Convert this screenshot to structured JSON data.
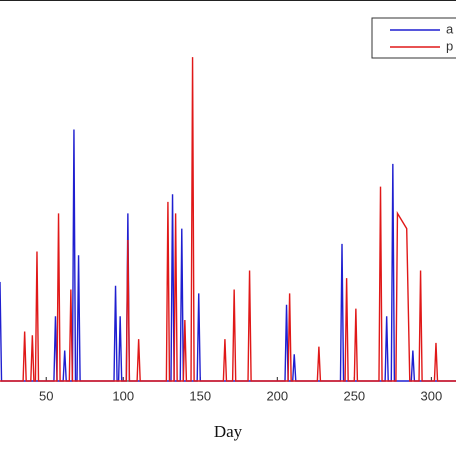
{
  "chart_data": {
    "type": "line",
    "xlabel": "Day",
    "x": [
      20,
      21,
      35,
      36,
      37,
      40,
      41,
      42,
      43,
      44,
      45,
      55,
      56,
      57,
      58,
      59,
      61,
      62,
      63,
      65,
      66,
      67,
      68,
      69,
      70,
      71,
      72,
      94,
      95,
      96,
      97,
      98,
      99,
      102,
      103,
      104,
      109,
      110,
      111,
      128,
      129,
      130,
      131,
      132,
      133,
      134,
      135,
      137,
      138,
      139,
      140,
      141,
      144,
      145,
      146,
      148,
      149,
      150,
      165,
      166,
      167,
      171,
      172,
      173,
      181,
      182,
      183,
      205,
      206,
      207,
      208,
      209,
      210,
      211,
      212,
      226,
      227,
      228,
      241,
      242,
      243,
      244,
      245,
      246,
      250,
      251,
      252,
      266,
      267,
      268,
      270,
      271,
      272,
      274,
      275,
      276,
      277,
      278,
      284,
      286,
      287,
      288,
      289,
      292,
      293,
      294,
      302,
      303,
      304,
      316
    ],
    "series": [
      {
        "name": "a",
        "color": "#1f1fd0",
        "values": [
          26,
          0,
          0,
          0,
          0,
          0,
          0,
          0,
          0,
          0,
          0,
          0,
          17,
          0,
          0,
          0,
          0,
          8,
          0,
          0,
          0,
          0,
          66,
          0,
          0,
          33,
          0,
          0,
          25,
          0,
          0,
          17,
          0,
          0,
          44,
          0,
          0,
          0,
          0,
          0,
          0,
          0,
          0,
          49,
          0,
          0,
          0,
          0,
          40,
          0,
          0,
          0,
          0,
          0,
          0,
          0,
          23,
          0,
          0,
          0,
          0,
          0,
          0,
          0,
          0,
          0,
          0,
          0,
          20,
          0,
          0,
          0,
          0,
          7,
          0,
          0,
          0,
          0,
          0,
          36,
          0,
          0,
          0,
          0,
          0,
          0,
          0,
          0,
          0,
          0,
          0,
          17,
          0,
          0,
          57,
          0,
          0,
          0,
          0,
          0,
          0,
          8,
          0,
          0,
          0,
          0,
          0,
          0,
          0,
          0
        ]
      },
      {
        "name": "p",
        "color": "#e01818",
        "values": [
          0,
          0,
          0,
          13,
          0,
          0,
          12,
          0,
          0,
          34,
          0,
          0,
          0,
          0,
          44,
          0,
          0,
          0,
          0,
          0,
          24,
          0,
          0,
          0,
          0,
          0,
          0,
          0,
          0,
          0,
          0,
          0,
          0,
          0,
          37,
          0,
          0,
          11,
          0,
          0,
          47,
          0,
          0,
          0,
          0,
          44,
          0,
          0,
          0,
          0,
          16,
          0,
          0,
          85,
          0,
          0,
          0,
          0,
          0,
          11,
          0,
          0,
          24,
          0,
          0,
          29,
          0,
          0,
          0,
          0,
          23,
          0,
          0,
          0,
          0,
          0,
          9,
          0,
          0,
          0,
          0,
          0,
          27,
          0,
          0,
          19,
          0,
          0,
          51,
          0,
          0,
          0,
          0,
          0,
          0,
          0,
          0,
          44,
          40,
          0,
          0,
          0,
          0,
          0,
          29,
          0,
          0,
          10,
          0,
          0
        ]
      }
    ],
    "xlim": [
      20,
      316
    ],
    "xticks": [
      50,
      100,
      150,
      200,
      250,
      300
    ],
    "ylim": [
      0,
      100
    ],
    "legend": "upper right"
  }
}
